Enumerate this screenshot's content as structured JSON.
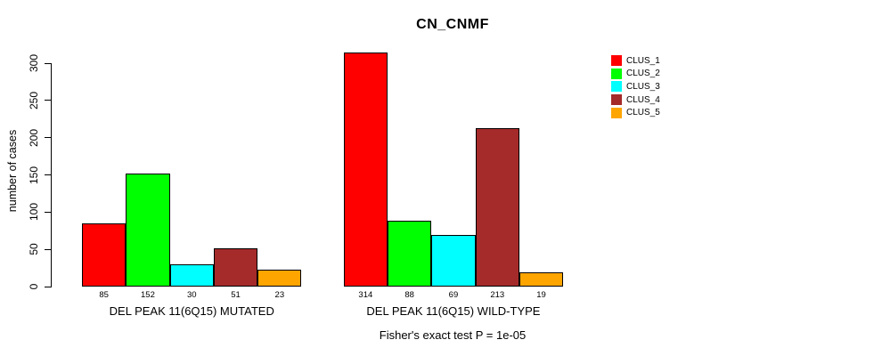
{
  "chart_data": {
    "type": "bar",
    "title": "CN_CNMF",
    "ylabel": "number of cases",
    "ylim": [
      0,
      300
    ],
    "yticks": [
      0,
      50,
      100,
      150,
      200,
      250,
      300
    ],
    "grid": false,
    "legend_position": "top-right",
    "axis_color": "#000000",
    "bar_border_color": "#000000",
    "groups": [
      {
        "label": "DEL PEAK 11(6Q15) MUTATED",
        "values": [
          85,
          152,
          30,
          51,
          23
        ]
      },
      {
        "label": "DEL PEAK 11(6Q15) WILD-TYPE",
        "values": [
          314,
          88,
          69,
          213,
          19
        ]
      }
    ],
    "series": [
      {
        "name": "CLUS_1",
        "color": "#FF0000"
      },
      {
        "name": "CLUS_2",
        "color": "#00FF00"
      },
      {
        "name": "CLUS_3",
        "color": "#00FFFF"
      },
      {
        "name": "CLUS_4",
        "color": "#A52A2A"
      },
      {
        "name": "CLUS_5",
        "color": "#FFA500"
      }
    ],
    "annotation": "Fisher's exact test P = 1e-05"
  }
}
